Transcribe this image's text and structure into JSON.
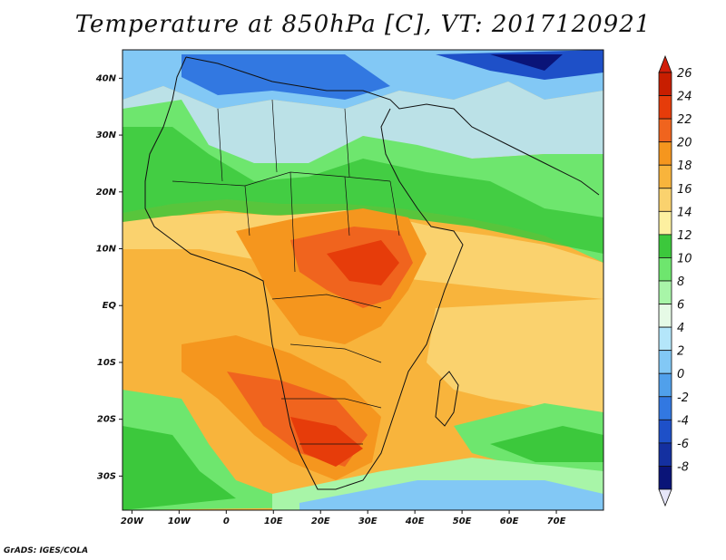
{
  "title": "Temperature at 850hPa [C], VT: 2017120921",
  "credit": "GrADS: IGES/COLA",
  "map": {
    "lon_range": [
      -22,
      80
    ],
    "lat_range": [
      -36,
      45
    ],
    "lat_ticks": [
      {
        "value": 40,
        "label": "40N"
      },
      {
        "value": 30,
        "label": "30N"
      },
      {
        "value": 20,
        "label": "20N"
      },
      {
        "value": 10,
        "label": "10N"
      },
      {
        "value": 0,
        "label": "EQ"
      },
      {
        "value": -10,
        "label": "10S"
      },
      {
        "value": -20,
        "label": "20S"
      },
      {
        "value": -30,
        "label": "30S"
      }
    ],
    "lon_ticks": [
      {
        "value": -20,
        "label": "20W"
      },
      {
        "value": -10,
        "label": "10W"
      },
      {
        "value": 0,
        "label": "0"
      },
      {
        "value": 10,
        "label": "10E"
      },
      {
        "value": 20,
        "label": "20E"
      },
      {
        "value": 30,
        "label": "30E"
      },
      {
        "value": 40,
        "label": "40E"
      },
      {
        "value": 50,
        "label": "50E"
      },
      {
        "value": 60,
        "label": "60E"
      },
      {
        "value": 70,
        "label": "70E"
      }
    ]
  },
  "colorbar": {
    "unit": "C",
    "levels": [
      {
        "label": "26",
        "color": "#c81e00"
      },
      {
        "label": "24",
        "color": "#e63c0a"
      },
      {
        "label": "22",
        "color": "#f0641e"
      },
      {
        "label": "20",
        "color": "#f5961e"
      },
      {
        "label": "18",
        "color": "#f8b43c"
      },
      {
        "label": "16",
        "color": "#fad26e"
      },
      {
        "label": "14",
        "color": "#fdf0a0"
      },
      {
        "label": "12",
        "color": "#3cc83c"
      },
      {
        "label": "10",
        "color": "#6ee66e"
      },
      {
        "label": "8",
        "color": "#a8f5a8"
      },
      {
        "label": "6",
        "color": "#e6fae6"
      },
      {
        "label": "4",
        "color": "#b4e6fa"
      },
      {
        "label": "2",
        "color": "#82c8f5"
      },
      {
        "label": "0",
        "color": "#50a0eb"
      },
      {
        "label": "-2",
        "color": "#3278e1"
      },
      {
        "label": "-4",
        "color": "#1e50c8"
      },
      {
        "label": "-6",
        "color": "#1430a0"
      },
      {
        "label": "-8",
        "color": "#0a1478"
      }
    ],
    "over_color": "#d21e0a",
    "under_color": "#e6e6fa"
  }
}
